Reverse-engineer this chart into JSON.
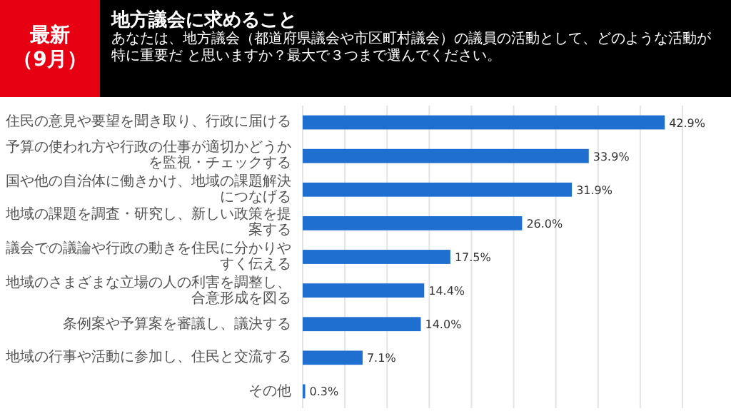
{
  "chart_data": {
    "type": "bar",
    "orientation": "horizontal",
    "title": "地方議会に求めること",
    "subtitle": "あなたは、地方議会（都道府県議会や市区町村議会）の議員の活動として、どのような活動が特に重要だ と思いますか？最大で３つまで選んでください。",
    "annotations": [
      "最新",
      "（9月）"
    ],
    "categories": [
      "住民の意見や要望を聞き取り、行政に届ける",
      "予算の使われ方や行政の仕事が適切かどうかを監視・チェックする",
      "国や他の自治体に働きかけ、地域の課題解決につなげる",
      "地域の課題を調査・研究し、新しい政策を提案する",
      "議会での議論や行政の動きを住民に分かりやすく伝える",
      "地域のさまざまな立場の人の利害を調整し、合意形成を図る",
      "条例案や予算案を審議し、議決する",
      "地域の行事や活動に参加し、住民と交流する",
      "その他"
    ],
    "values": [
      42.9,
      33.9,
      31.9,
      26.0,
      17.5,
      14.4,
      14.0,
      7.1,
      0.3
    ],
    "value_labels": [
      "42.9%",
      "33.9%",
      "31.9%",
      "26.0%",
      "17.5%",
      "14.4%",
      "14.0%",
      "7.1%",
      "0.3%"
    ],
    "color": "#1f6fd1",
    "xlim": [
      0,
      45
    ],
    "xticks": [
      {
        "value": 0,
        "label": null
      },
      {
        "value": 5,
        "label": null
      },
      {
        "value": 10,
        "label": null
      },
      {
        "value": 15,
        "label": null
      },
      {
        "value": 20,
        "label": null
      },
      {
        "value": 25,
        "label": null
      },
      {
        "value": 30,
        "label": null
      },
      {
        "value": 35,
        "label": null
      },
      {
        "value": 40,
        "label": null
      },
      {
        "value": 45,
        "label": null
      }
    ],
    "grid": "x"
  }
}
